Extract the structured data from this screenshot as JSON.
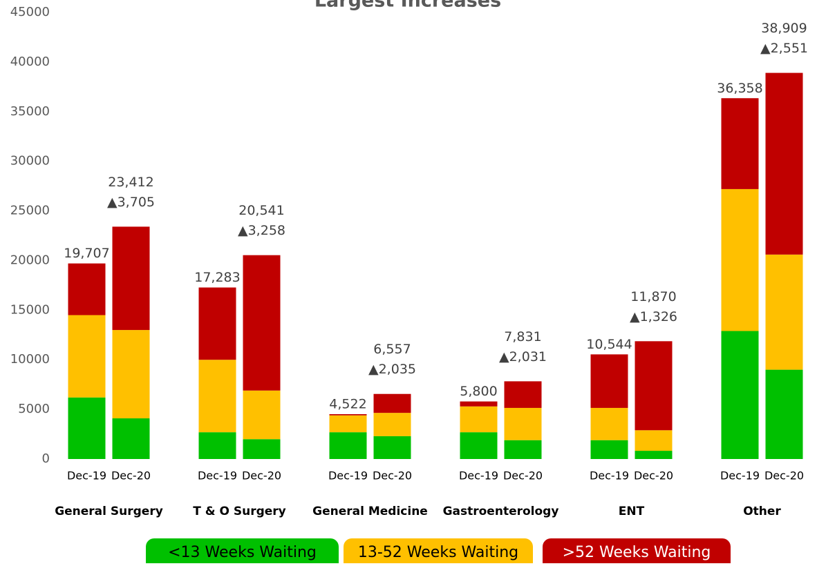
{
  "chart_data": {
    "type": "stacked_bar",
    "title": "Largest Increases",
    "groups": [
      "General Surgery",
      "T & O Surgery",
      "General Medicine",
      "Gastroenterology",
      "ENT",
      "Other"
    ],
    "categories": [
      "Dec-19",
      "Dec-20",
      "Dec-19",
      "Dec-20",
      "Dec-19",
      "Dec-20",
      "Dec-19",
      "Dec-20",
      "Dec-19",
      "Dec-20",
      "Dec-19",
      "Dec-20"
    ],
    "series": [
      {
        "name": "<13 Weeks Waiting",
        "color": "#00c000",
        "text_color": "#000000",
        "values": [
          6200,
          4100,
          2700,
          2000,
          2700,
          2300,
          2700,
          1900,
          1900,
          830,
          12900,
          9000
        ]
      },
      {
        "name": "13-52 Weeks Waiting",
        "color": "#ffc000",
        "text_color": "#000000",
        "values": [
          8300,
          8900,
          7300,
          4900,
          1700,
          2350,
          2600,
          3250,
          3250,
          2070,
          14300,
          11600
        ]
      },
      {
        "name": ">52 Weeks Waiting",
        "color": "#c00000",
        "text_color": "#ffffff",
        "values": [
          5207,
          10412,
          7283,
          13641,
          122,
          1907,
          500,
          2681,
          5394,
          8970,
          9158,
          18309
        ]
      }
    ],
    "totals": {
      "values": [
        19707,
        23412,
        17283,
        20541,
        4522,
        6557,
        5800,
        7831,
        10544,
        11870,
        36358,
        38909
      ],
      "value_labels": [
        "19,707",
        "23,412",
        "17,283",
        "20,541",
        "4,522",
        "6,557",
        "5,800",
        "7,831",
        "10,544",
        "11,870",
        "36,358",
        "38,909"
      ]
    },
    "increases": {
      "values": [
        3705,
        3258,
        2035,
        2031,
        1326,
        2551
      ],
      "value_labels": [
        "▲3,705",
        "▲3,258",
        "▲2,035",
        "▲2,031",
        "▲1,326",
        "▲2,551"
      ]
    },
    "ylim": [
      0,
      45000
    ],
    "yticks": [
      0,
      5000,
      10000,
      15000,
      20000,
      25000,
      30000,
      35000,
      40000,
      45000
    ],
    "grid": false,
    "legend": "bottom"
  }
}
